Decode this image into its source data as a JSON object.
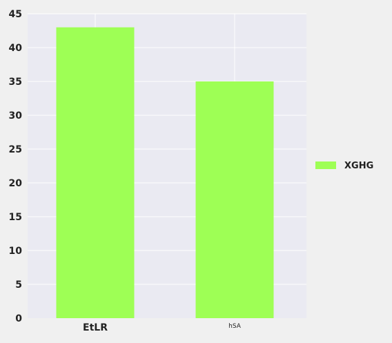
{
  "chart_data": {
    "type": "bar",
    "categories": [
      "EtLR",
      "hSA"
    ],
    "series": [
      {
        "name": "XGHG",
        "values": [
          43,
          35
        ],
        "color": "#9eff55"
      }
    ],
    "ylim": [
      0,
      45
    ],
    "yticks": [
      0,
      5,
      10,
      15,
      20,
      25,
      30,
      35,
      40,
      45
    ],
    "grid": true,
    "legend_position": "right",
    "plot_background": "#eaeaf2",
    "figure_background": "#f0f0f0",
    "title": "",
    "xlabel": "",
    "ylabel": ""
  }
}
